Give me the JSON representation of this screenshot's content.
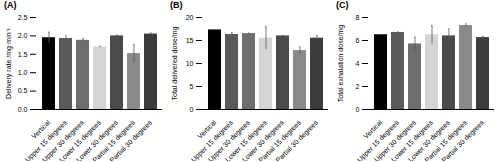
{
  "chart_data": [
    {
      "type": "bar",
      "title": "(A)",
      "y_label": "Delivery rate /mg·min⁻¹",
      "categories": [
        "Vertical",
        "Upper 15 degrees",
        "Upper 30 degrees",
        "Lower 15 degrees",
        "Lower 30 degrees",
        "Partial 15 degrees",
        "Partial 30 degrees"
      ],
      "values": [
        1.95,
        1.93,
        1.88,
        1.7,
        2.0,
        1.52,
        2.05
      ],
      "errors": [
        0.15,
        0.07,
        0.05,
        0.02,
        0.02,
        0.25,
        0.03
      ],
      "colors": [
        "#000000",
        "#5a5a5a",
        "#6e6e6e",
        "#d4d4d4",
        "#4a4a4a",
        "#8a8a8a",
        "#3c3c3c"
      ],
      "ylim": [
        0,
        2.5
      ],
      "yticks": [
        {
          "value": 0,
          "label": "0.0"
        },
        0.5,
        {
          "value": 1,
          "label": "1.0"
        },
        1.5,
        {
          "value": 2,
          "label": "2.0"
        },
        2.5
      ]
    },
    {
      "type": "bar",
      "title": "(B)",
      "y_label": "Total delivered dose/mg",
      "categories": [
        "Vertical",
        "Upper 15 degrees",
        "Upper 30 degrees",
        "Lower 15 degrees",
        "Lower 30 degrees",
        "Partial 15 degrees",
        "Partial 30 degrees"
      ],
      "values": [
        17.3,
        16.3,
        16.5,
        15.5,
        16.0,
        12.8,
        15.5
      ],
      "errors": [
        0.1,
        0.4,
        0.1,
        2.5,
        0.1,
        0.8,
        0.6
      ],
      "colors": [
        "#000000",
        "#5a5a5a",
        "#6e6e6e",
        "#d4d4d4",
        "#4a4a4a",
        "#8a8a8a",
        "#3c3c3c"
      ],
      "ylim": [
        0,
        20
      ],
      "yticks": [
        0,
        5,
        10,
        15,
        20
      ]
    },
    {
      "type": "bar",
      "title": "(C)",
      "y_label": "Total exhalation dose/mg",
      "categories": [
        "Vertical",
        "Upper 15 degrees",
        "Upper 30 degrees",
        "Lower 15 degrees",
        "Lower 30 degrees",
        "Partial 15 degrees",
        "Partial 30 degrees"
      ],
      "values": [
        6.5,
        6.7,
        5.7,
        6.5,
        6.4,
        7.3,
        6.25
      ],
      "errors": [
        0,
        0.05,
        0.6,
        0.8,
        0.6,
        0.15,
        0.1
      ],
      "colors": [
        "#000000",
        "#5a5a5a",
        "#6e6e6e",
        "#d4d4d4",
        "#4a4a4a",
        "#8a8a8a",
        "#3c3c3c"
      ],
      "ylim": [
        0,
        8
      ],
      "yticks": [
        0,
        2,
        4,
        6,
        8
      ]
    }
  ]
}
